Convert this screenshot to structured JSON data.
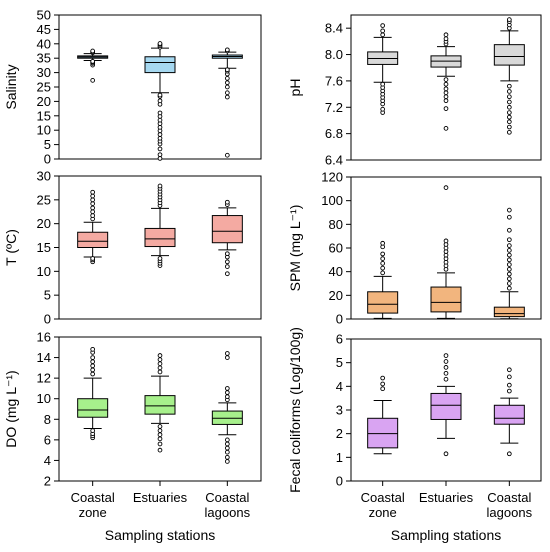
{
  "chart_data": [
    {
      "type": "box",
      "ylabel": "Salinity",
      "ylim": [
        0,
        50
      ],
      "yticks": [
        "0",
        "5",
        "10",
        "15",
        "20",
        "25",
        "30",
        "35",
        "40",
        "45",
        "50"
      ],
      "fill": "#a6d8f0",
      "boxes": [
        {
          "q1": 35.0,
          "median": 35.4,
          "q3": 35.8,
          "whisker_low": 34.2,
          "whisker_high": 36.6,
          "outliers": [
            27.3,
            32.6,
            33.2,
            33.6,
            33.9,
            36.9,
            37.2,
            37.5
          ]
        },
        {
          "q1": 30.0,
          "median": 33.5,
          "q3": 35.5,
          "whisker_low": 23.0,
          "whisker_high": 38.5,
          "outliers": [
            0.2,
            1.5,
            3.5,
            5.2,
            6.2,
            7.2,
            8.5,
            9.8,
            11.0,
            12.3,
            13.5,
            14.8,
            16.0,
            19.0,
            20.2,
            21.7,
            22.2,
            38.8,
            39.3,
            39.8,
            40.1
          ]
        },
        {
          "q1": 35.0,
          "median": 35.6,
          "q3": 36.1,
          "whisker_low": 31.5,
          "whisker_high": 37.1,
          "outliers": [
            1.3,
            21.5,
            23.0,
            25.0,
            26.5,
            28.0,
            29.5,
            30.5,
            31.0,
            37.5,
            37.9
          ]
        }
      ]
    },
    {
      "type": "box",
      "ylabel": "pH",
      "ylim": [
        6.4,
        8.6
      ],
      "yticks": [
        "6.4",
        "6.8",
        "7.2",
        "7.6",
        "8.0",
        "8.4"
      ],
      "fill": "#d9d9d9",
      "boxes": [
        {
          "q1": 7.85,
          "median": 7.94,
          "q3": 8.04,
          "whisker_low": 7.58,
          "whisker_high": 8.26,
          "outliers": [
            7.12,
            7.17,
            7.25,
            7.3,
            7.35,
            7.4,
            7.45,
            7.5,
            7.55,
            8.3,
            8.36,
            8.44
          ]
        },
        {
          "q1": 7.81,
          "median": 7.9,
          "q3": 7.98,
          "whisker_low": 7.67,
          "whisker_high": 8.12,
          "outliers": [
            6.88,
            7.18,
            7.3,
            7.36,
            7.42,
            7.48,
            7.55,
            7.62,
            8.16,
            8.2,
            8.24,
            8.3
          ]
        },
        {
          "q1": 7.84,
          "median": 7.97,
          "q3": 8.15,
          "whisker_low": 7.6,
          "whisker_high": 8.36,
          "outliers": [
            6.82,
            6.9,
            6.98,
            7.05,
            7.12,
            7.2,
            7.28,
            7.36,
            7.44,
            7.52,
            8.4,
            8.45,
            8.5,
            8.53
          ]
        }
      ]
    },
    {
      "type": "box",
      "ylabel": "T (ºC)",
      "ylim": [
        0,
        30
      ],
      "yticks": [
        "0",
        "5",
        "10",
        "15",
        "20",
        "25",
        "30"
      ],
      "fill": "#f4aaa2",
      "boxes": [
        {
          "q1": 15.0,
          "median": 16.3,
          "q3": 18.2,
          "whisker_low": 13.0,
          "whisker_high": 20.3,
          "outliers": [
            12.0,
            12.4,
            12.7,
            21.0,
            21.7,
            22.5,
            23.3,
            24.2,
            25.0,
            25.8,
            26.6
          ]
        },
        {
          "q1": 15.2,
          "median": 16.8,
          "q3": 19.0,
          "whisker_low": 13.3,
          "whisker_high": 23.2,
          "outliers": [
            11.2,
            11.7,
            12.2,
            12.7,
            23.8,
            24.4,
            25.0,
            25.6,
            26.2,
            26.8,
            27.4,
            27.9
          ]
        },
        {
          "q1": 16.0,
          "median": 18.4,
          "q3": 21.7,
          "whisker_low": 14.5,
          "whisker_high": 23.3,
          "outliers": [
            9.5,
            11.0,
            12.0,
            13.0,
            13.7,
            24.0,
            24.5
          ]
        }
      ]
    },
    {
      "type": "box",
      "ylabel": "SPM (mg L⁻¹)",
      "ylim": [
        0,
        120
      ],
      "yticks": [
        "0",
        "20",
        "40",
        "60",
        "80",
        "100",
        "120"
      ],
      "fill": "#f2b57e",
      "boxes": [
        {
          "q1": 5.0,
          "median": 12.5,
          "q3": 23.0,
          "whisker_low": 0.5,
          "whisker_high": 36.0,
          "outliers": [
            39.0,
            43.0,
            47.0,
            51.0,
            55.0,
            61.0,
            64.0
          ]
        },
        {
          "q1": 6.0,
          "median": 14.0,
          "q3": 27.0,
          "whisker_low": 0.5,
          "whisker_high": 39.0,
          "outliers": [
            42.0,
            45.0,
            48.0,
            51.0,
            54.0,
            57.0,
            60.0,
            63.0,
            66.0,
            111.0
          ]
        },
        {
          "q1": 2.0,
          "median": 4.5,
          "q3": 10.0,
          "whisker_low": 0.2,
          "whisker_high": 23.0,
          "outliers": [
            26.0,
            30.0,
            34.0,
            38.0,
            42.0,
            46.0,
            50.0,
            54.0,
            58.0,
            62.0,
            67.0,
            75.0,
            86.0,
            92.0
          ]
        }
      ]
    },
    {
      "type": "box",
      "ylabel": "DO (mg L⁻¹)",
      "ylim": [
        2,
        16
      ],
      "yticks": [
        "2",
        "4",
        "6",
        "8",
        "10",
        "12",
        "14",
        "16"
      ],
      "fill": "#a7f08c",
      "boxes": [
        {
          "q1": 8.2,
          "median": 8.9,
          "q3": 10.0,
          "whisker_low": 7.1,
          "whisker_high": 12.0,
          "outliers": [
            6.2,
            6.4,
            6.6,
            6.9,
            12.4,
            12.8,
            13.2,
            13.6,
            14.0,
            14.5,
            14.8
          ]
        },
        {
          "q1": 8.5,
          "median": 9.3,
          "q3": 10.3,
          "whisker_low": 7.6,
          "whisker_high": 12.2,
          "outliers": [
            5.0,
            5.6,
            6.1,
            6.5,
            6.9,
            7.3,
            12.6,
            13.0,
            13.4,
            13.8,
            14.2
          ]
        },
        {
          "q1": 7.5,
          "median": 8.1,
          "q3": 8.8,
          "whisker_low": 6.5,
          "whisker_high": 9.6,
          "outliers": [
            3.9,
            4.3,
            4.8,
            5.2,
            5.6,
            6.0,
            9.9,
            10.2,
            10.6,
            11.0,
            14.0,
            14.4
          ]
        }
      ]
    },
    {
      "type": "box",
      "ylabel": "Fecal coliforms (Log/100g)",
      "ylim": [
        0,
        6
      ],
      "yticks": [
        "0",
        "1",
        "2",
        "3",
        "4",
        "5",
        "6"
      ],
      "fill": "#d9a4f2",
      "boxes": [
        {
          "q1": 1.4,
          "median": 2.0,
          "q3": 2.65,
          "whisker_low": 1.15,
          "whisker_high": 3.4,
          "outliers": [
            3.9,
            4.1,
            4.35
          ]
        },
        {
          "q1": 2.6,
          "median": 3.2,
          "q3": 3.7,
          "whisker_low": 1.8,
          "whisker_high": 4.0,
          "outliers": [
            1.15,
            4.3,
            4.55,
            4.8,
            5.05,
            5.3
          ]
        },
        {
          "q1": 2.4,
          "median": 2.65,
          "q3": 3.2,
          "whisker_low": 1.6,
          "whisker_high": 3.5,
          "outliers": [
            1.15,
            3.8,
            4.05,
            4.4,
            4.7
          ]
        }
      ]
    }
  ],
  "categories": [
    [
      "Coastal",
      "zone"
    ],
    [
      "Estuaries",
      ""
    ],
    [
      "Coastal",
      "lagoons"
    ]
  ],
  "xlabel": "Sampling stations"
}
